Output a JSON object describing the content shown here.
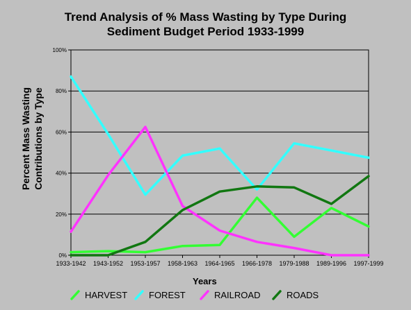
{
  "title": {
    "line1": "Trend Analysis of % Mass Wasting by Type During",
    "line2": "Sediment Budget Period 1933-1999"
  },
  "colors": {
    "background": "#c0c0c0",
    "plot_border": "#000000",
    "grid": "#000000",
    "harvest": "#33ff33",
    "forest": "#33ffff",
    "railroad": "#ff33ff",
    "roads": "#117711"
  },
  "chart_data": {
    "type": "line",
    "categories": [
      "1933-1942",
      "1943-1952",
      "1953-1957",
      "1958-1963",
      "1964-1965",
      "1966-1978",
      "1979-1988",
      "1989-1996",
      "1997-1999"
    ],
    "ylim": [
      0,
      100
    ],
    "yticks": [
      0,
      20,
      40,
      60,
      80,
      100
    ],
    "ytick_labels": [
      "0%",
      "20%",
      "40%",
      "60%",
      "80%",
      "100%"
    ],
    "xlabel": "Years",
    "ylabel_line1": "Percent Mass Wasting",
    "ylabel_line2": "Contributions by Type",
    "grid": true,
    "legend_position": "bottom",
    "series": [
      {
        "name": "HARVEST",
        "color": "#33ff33",
        "values": [
          1.5,
          2,
          1.5,
          4.5,
          5,
          28,
          9,
          23,
          14
        ]
      },
      {
        "name": "FOREST",
        "color": "#33ffff",
        "values": [
          87,
          59,
          29.5,
          48.5,
          52,
          32,
          54.5,
          51,
          47.5
        ]
      },
      {
        "name": "RAILROAD",
        "color": "#ff33ff",
        "values": [
          11.5,
          39,
          62.5,
          24,
          12,
          6.5,
          3.5,
          0,
          0
        ]
      },
      {
        "name": "ROADS",
        "color": "#117711",
        "values": [
          0,
          0,
          6.5,
          22,
          31,
          33.5,
          33,
          25,
          38.5
        ]
      }
    ]
  }
}
